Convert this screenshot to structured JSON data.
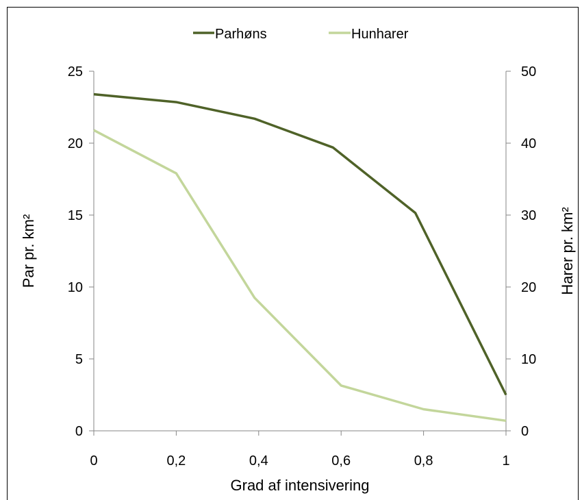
{
  "chart_data": {
    "type": "line",
    "xlabel": "Grad af intensivering",
    "ylabel_left": "Par pr. km²",
    "ylabel_right": "Harer pr.  km²",
    "x_ticks": [
      "0",
      "0,2",
      "0,4",
      "0,6",
      "0,8",
      "1"
    ],
    "xlim": [
      0,
      1
    ],
    "y_left_ticks": [
      "0",
      "5",
      "10",
      "15",
      "20",
      "25"
    ],
    "ylim_left": [
      0,
      25
    ],
    "y_right_ticks": [
      "0",
      "10",
      "20",
      "30",
      "40",
      "50"
    ],
    "ylim_right": [
      0,
      50
    ],
    "legend_position": "top-center",
    "grid": false,
    "series": [
      {
        "name": "Parhøns",
        "axis": "left",
        "color": "#4f6228",
        "x": [
          0,
          0.2,
          0.39,
          0.58,
          0.78,
          1.0
        ],
        "y": [
          23.4,
          22.85,
          21.7,
          19.7,
          15.15,
          2.5
        ]
      },
      {
        "name": "Hunharer",
        "axis": "right",
        "color": "#c3d69b",
        "x": [
          0,
          0.2,
          0.39,
          0.6,
          0.8,
          1.0
        ],
        "y": [
          41.8,
          35.8,
          18.5,
          6.3,
          3.0,
          1.4
        ]
      }
    ]
  }
}
